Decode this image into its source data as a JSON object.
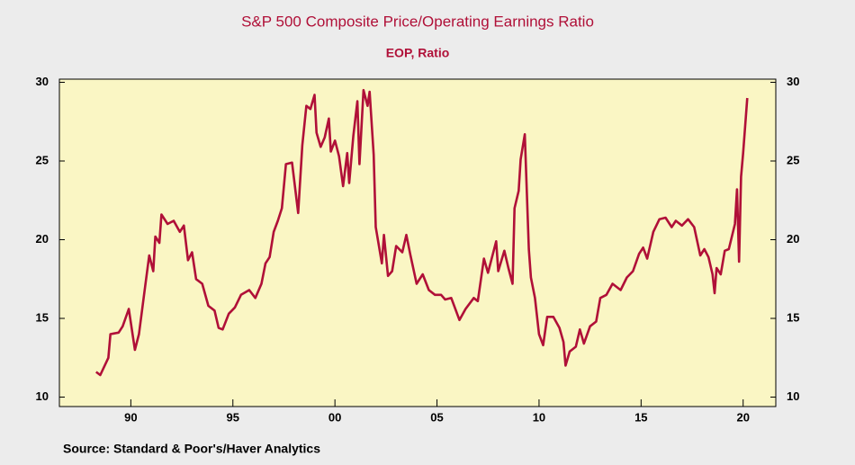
{
  "chart_data": {
    "type": "line",
    "title": "S&P 500 Composite Price/Operating Earnings Ratio",
    "subtitle": "EOP, Ratio",
    "source": "Source:  Standard & Poor's/Haver Analytics",
    "color": "#b01038",
    "x": [
      1988.3,
      1988.5,
      1988.9,
      1989.0,
      1989.4,
      1989.6,
      1989.9,
      1990.2,
      1990.4,
      1990.7,
      1990.9,
      1991.1,
      1991.2,
      1991.4,
      1991.5,
      1991.8,
      1992.1,
      1992.4,
      1992.6,
      1992.8,
      1993.0,
      1993.2,
      1993.5,
      1993.8,
      1994.1,
      1994.3,
      1994.5,
      1994.8,
      1995.1,
      1995.4,
      1995.8,
      1996.1,
      1996.4,
      1996.6,
      1996.8,
      1997.0,
      1997.2,
      1997.4,
      1997.6,
      1997.9,
      1998.2,
      1998.4,
      1998.6,
      1998.8,
      1999.0,
      1999.1,
      1999.3,
      1999.5,
      1999.7,
      1999.8,
      2000.0,
      2000.2,
      2000.4,
      2000.6,
      2000.7,
      2000.9,
      2001.1,
      2001.2,
      2001.4,
      2001.6,
      2001.7,
      2001.9,
      2002.0,
      2002.3,
      2002.4,
      2002.6,
      2002.8,
      2003.0,
      2003.3,
      2003.5,
      2003.7,
      2004.0,
      2004.3,
      2004.6,
      2004.9,
      2005.2,
      2005.4,
      2005.7,
      2006.1,
      2006.4,
      2006.8,
      2007.0,
      2007.3,
      2007.5,
      2007.9,
      2008.0,
      2008.3,
      2008.5,
      2008.7,
      2008.8,
      2009.0,
      2009.1,
      2009.3,
      2009.5,
      2009.6,
      2009.8,
      2010.0,
      2010.2,
      2010.4,
      2010.7,
      2011.0,
      2011.2,
      2011.3,
      2011.5,
      2011.8,
      2012.0,
      2012.2,
      2012.5,
      2012.8,
      2013.0,
      2013.3,
      2013.6,
      2014.0,
      2014.3,
      2014.6,
      2014.9,
      2015.1,
      2015.3,
      2015.6,
      2015.9,
      2016.2,
      2016.5,
      2016.7,
      2017.0,
      2017.3,
      2017.6,
      2017.9,
      2018.1,
      2018.3,
      2018.5,
      2018.6,
      2018.7,
      2018.9,
      2019.1,
      2019.3,
      2019.6,
      2019.7,
      2019.8,
      2019.9,
      2020.0,
      2020.2
    ],
    "values": [
      11.6,
      11.4,
      12.5,
      14.0,
      14.1,
      14.5,
      15.6,
      13.0,
      14.0,
      17.0,
      19.0,
      18.0,
      20.2,
      19.8,
      21.6,
      21.0,
      21.2,
      20.5,
      20.9,
      18.7,
      19.2,
      17.5,
      17.2,
      15.8,
      15.5,
      14.4,
      14.3,
      15.3,
      15.7,
      16.5,
      16.8,
      16.3,
      17.2,
      18.5,
      18.9,
      20.5,
      21.2,
      22.0,
      24.8,
      24.9,
      21.7,
      26.0,
      28.5,
      28.3,
      29.2,
      26.8,
      25.9,
      26.5,
      27.7,
      25.6,
      26.3,
      25.3,
      23.4,
      25.5,
      23.6,
      26.6,
      28.8,
      24.8,
      29.5,
      28.5,
      29.4,
      25.4,
      20.8,
      18.5,
      20.3,
      17.7,
      18.0,
      19.6,
      19.2,
      20.3,
      19.0,
      17.2,
      17.8,
      16.8,
      16.5,
      16.5,
      16.2,
      16.3,
      14.9,
      15.6,
      16.3,
      16.1,
      18.8,
      17.9,
      19.9,
      18.0,
      19.3,
      18.2,
      17.2,
      22.0,
      23.1,
      25.1,
      26.7,
      19.4,
      17.6,
      16.3,
      14.0,
      13.3,
      15.1,
      15.1,
      14.4,
      13.5,
      12.0,
      12.9,
      13.2,
      14.3,
      13.4,
      14.5,
      14.8,
      16.3,
      16.5,
      17.2,
      16.8,
      17.6,
      18.0,
      19.1,
      19.5,
      18.8,
      20.5,
      21.3,
      21.4,
      20.8,
      21.2,
      20.9,
      21.3,
      20.8,
      19.0,
      19.4,
      18.9,
      17.8,
      16.6,
      18.2,
      17.8,
      19.3,
      19.4,
      21.0,
      23.2,
      18.6,
      24.0,
      25.5,
      29.0
    ],
    "xlim": [
      1986.5,
      2021.6
    ],
    "xticks": [
      {
        "value": 1990,
        "label": "90"
      },
      {
        "value": 1995,
        "label": "95"
      },
      {
        "value": 2000,
        "label": "00"
      },
      {
        "value": 2005,
        "label": "05"
      },
      {
        "value": 2010,
        "label": "10"
      },
      {
        "value": 2015,
        "label": "15"
      },
      {
        "value": 2020,
        "label": "20"
      }
    ],
    "ylim": [
      9.4,
      30.2
    ],
    "yticks": [
      10,
      15,
      20,
      25,
      30
    ],
    "y2lim": [
      9.4,
      30.2
    ],
    "y2ticks": [
      10,
      15,
      20,
      25,
      30
    ],
    "grid": false
  }
}
